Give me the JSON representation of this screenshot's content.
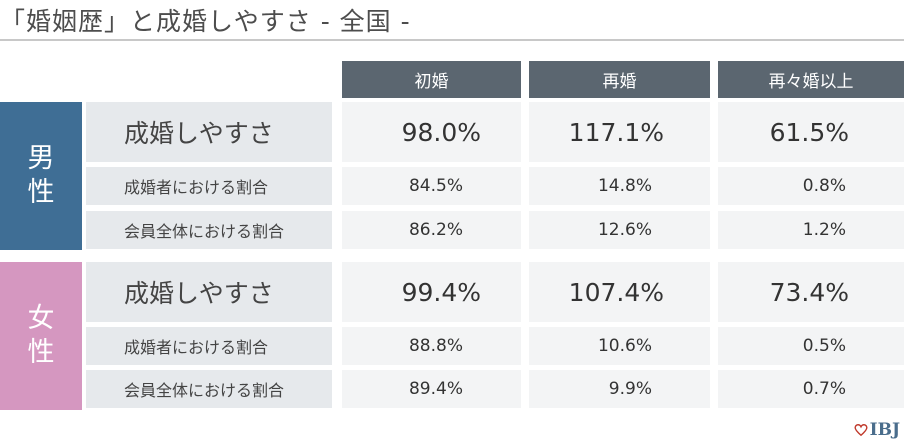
{
  "title": "「婚姻歴」と成婚しやすさ - 全国 -",
  "colors": {
    "male": "#3f6e95",
    "female": "#d597c0",
    "header": "#5b6670",
    "label_bg": "#e6e9ec",
    "value_bg": "#f3f4f5",
    "logo_heart": "#c0392b"
  },
  "columns": [
    "初婚",
    "再婚",
    "再々婚以上"
  ],
  "male": {
    "label_line1": "男",
    "label_line2": "性",
    "rows": [
      {
        "label": "成婚しやすさ",
        "values": [
          "98.0%",
          "117.1%",
          "61.5%"
        ]
      },
      {
        "label": "成婚者における割合",
        "values": [
          "84.5%",
          "14.8%",
          "0.8%"
        ]
      },
      {
        "label": "会員全体における割合",
        "values": [
          "86.2%",
          "12.6%",
          "1.2%"
        ]
      }
    ]
  },
  "female": {
    "label_line1": "女",
    "label_line2": "性",
    "rows": [
      {
        "label": "成婚しやすさ",
        "values": [
          "99.4%",
          "107.4%",
          "73.4%"
        ]
      },
      {
        "label": "成婚者における割合",
        "values": [
          "88.8%",
          "10.6%",
          "0.5%"
        ]
      },
      {
        "label": "会員全体における割合",
        "values": [
          "89.4%",
          "9.9%",
          "0.7%"
        ]
      }
    ]
  },
  "logo": {
    "text": "IBJ",
    "icon": "heart-icon"
  }
}
